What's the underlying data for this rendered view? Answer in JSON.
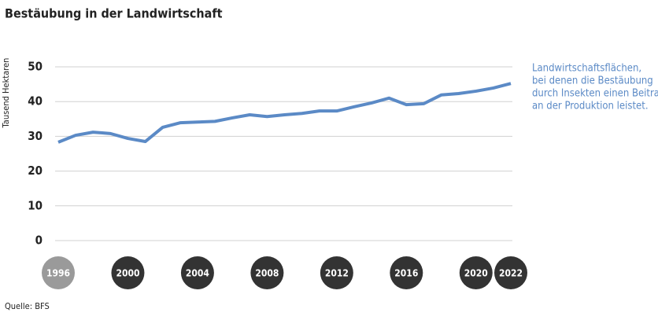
{
  "chart_data": {
    "type": "line",
    "title": "Bestäubung in der Landwirtschaft",
    "y_label": "Tausend Hektaren",
    "x": [
      1996,
      1997,
      1998,
      1999,
      2000,
      2001,
      2002,
      2003,
      2004,
      2005,
      2006,
      2007,
      2008,
      2009,
      2010,
      2011,
      2012,
      2013,
      2014,
      2015,
      2016,
      2017,
      2018,
      2019,
      2020,
      2021,
      2022
    ],
    "series": [
      {
        "name": "Landwirtschaftsflächen",
        "color": "#5b8ac6",
        "values": [
          28.3,
          30.3,
          31.2,
          30.8,
          29.4,
          28.5,
          32.6,
          33.9,
          34.1,
          34.3,
          35.3,
          36.2,
          35.7,
          36.2,
          36.6,
          37.3,
          37.3,
          38.5,
          39.6,
          41.0,
          39.1,
          39.4,
          41.9,
          42.3,
          43.0,
          43.9,
          45.2
        ]
      }
    ],
    "xlim": [
      1996,
      2022
    ],
    "xticks": [
      1996,
      2000,
      2004,
      2008,
      2012,
      2016,
      2020,
      2022
    ],
    "ylim": [
      0,
      50
    ],
    "yticks": [
      0,
      10,
      20,
      30,
      40,
      50
    ],
    "grid": true,
    "annotation": [
      "Landwirtschaftsflächen,",
      "bei denen die Bestäubung",
      "durch Insekten einen Beitrag",
      "an der Produktion leistet."
    ],
    "source": "Quelle: BFS"
  }
}
